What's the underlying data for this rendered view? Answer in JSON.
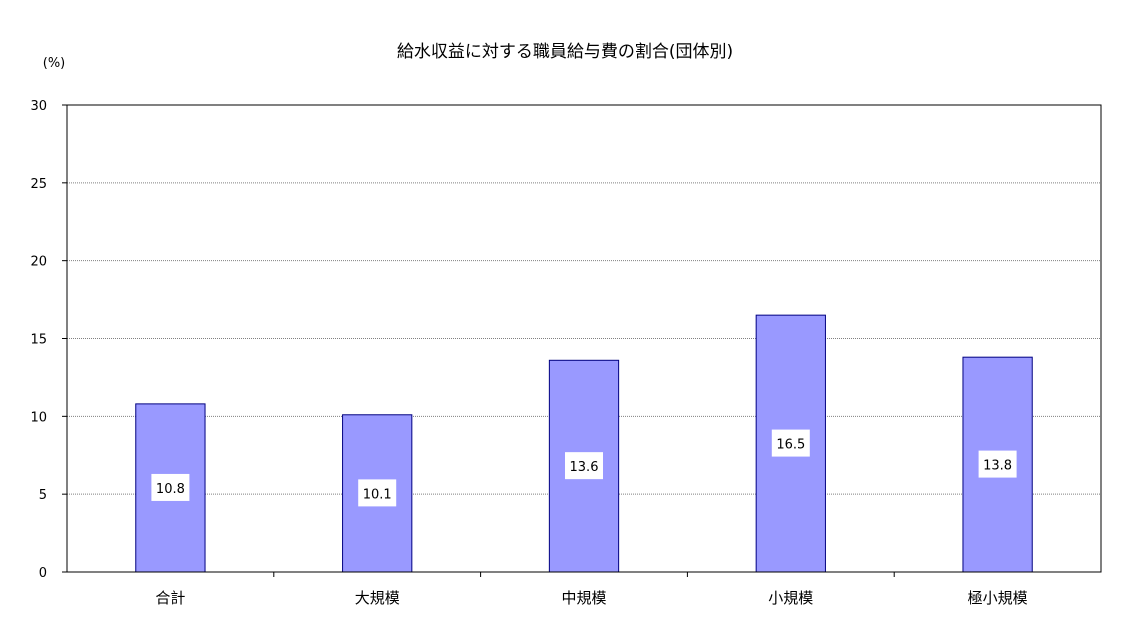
{
  "chart_data": {
    "type": "bar",
    "title": "給水収益に対する職員給与費の割合(団体別)",
    "ylabel": "(%)",
    "xlabel": "",
    "categories": [
      "合計",
      "大規模",
      "中規模",
      "小規模",
      "極小規模"
    ],
    "values": [
      10.8,
      10.1,
      13.6,
      16.5,
      13.8
    ],
    "value_labels": [
      "10.8",
      "10.1",
      "13.6",
      "16.5",
      "13.8"
    ],
    "ylim": [
      0,
      30
    ],
    "yticks": [
      0,
      5,
      10,
      15,
      20,
      25,
      30
    ],
    "grid": true,
    "legend": "none",
    "bar_color": "#9999ff",
    "bar_edge_color": "#000080"
  }
}
